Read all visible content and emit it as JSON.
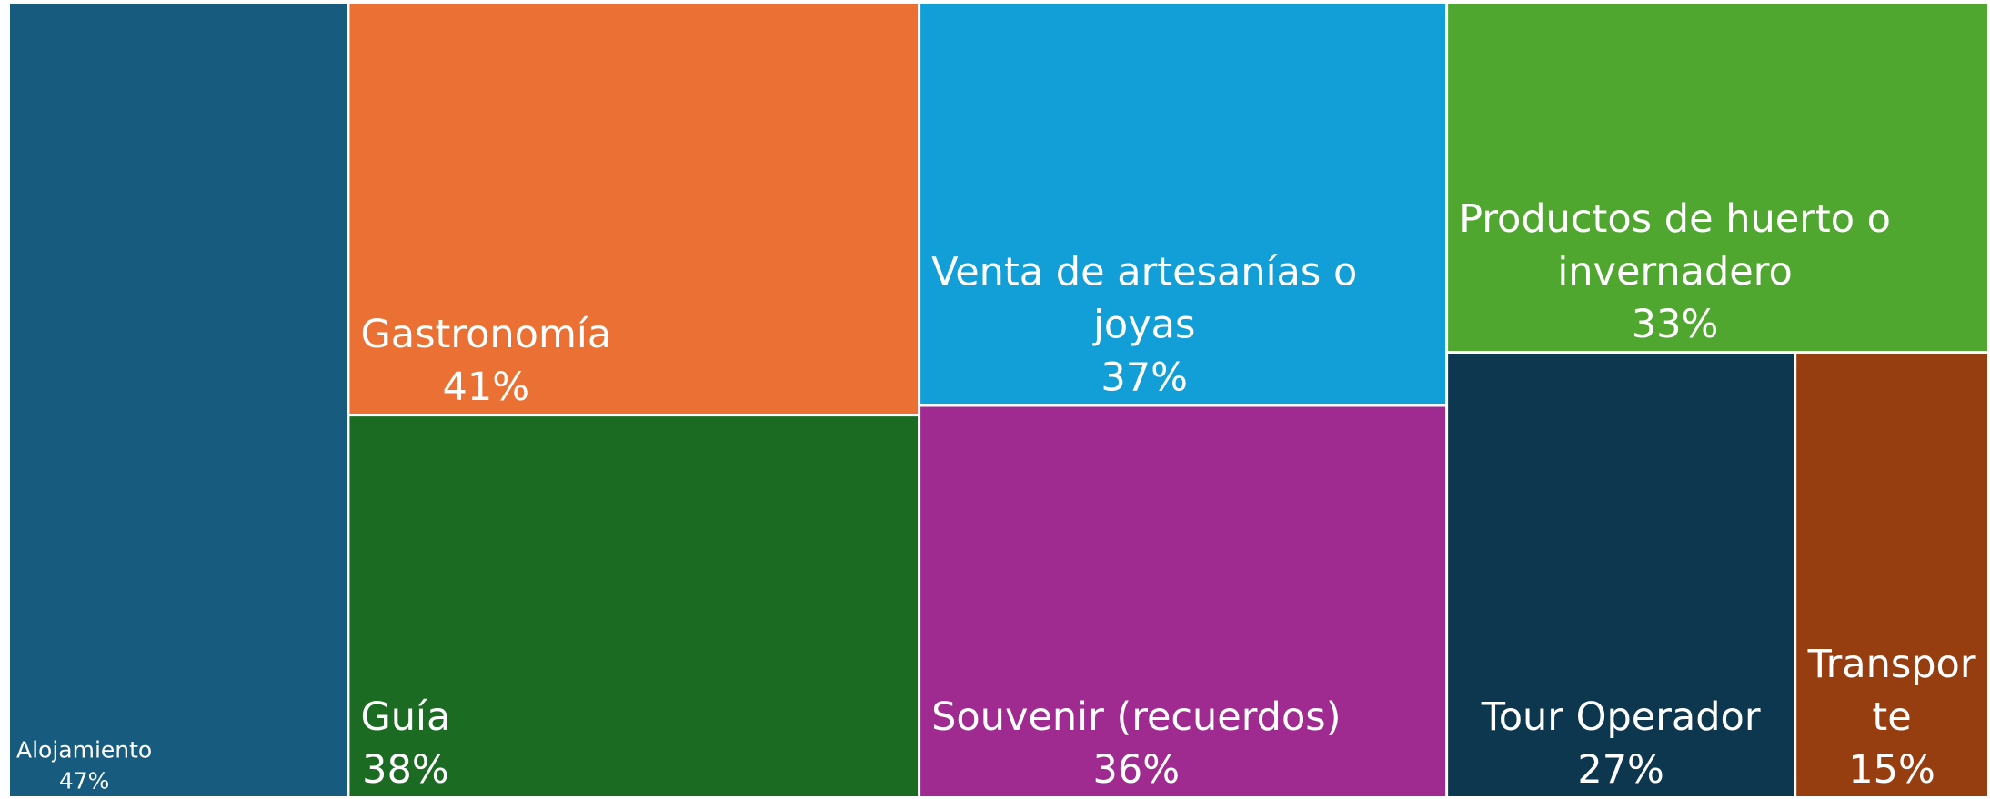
{
  "chart_data": {
    "type": "treemap",
    "categories": [
      "Alojamiento",
      "Gastronomía",
      "Guía",
      "Venta de artesanías o joyas",
      "Souvenir (recuerdos)",
      "Productos de huerto o invernadero",
      "Tour Operador",
      "Transporte"
    ],
    "values": [
      47,
      41,
      38,
      37,
      36,
      33,
      27,
      15
    ],
    "value_labels": [
      "47%",
      "41%",
      "38%",
      "37%",
      "36%",
      "33%",
      "27%",
      "15%"
    ],
    "colors": [
      "#175c7e",
      "#ea7133",
      "#1b6b23",
      "#129ed7",
      "#9f2b90",
      "#4fa72f",
      "#0d374e",
      "#973e11"
    ]
  }
}
